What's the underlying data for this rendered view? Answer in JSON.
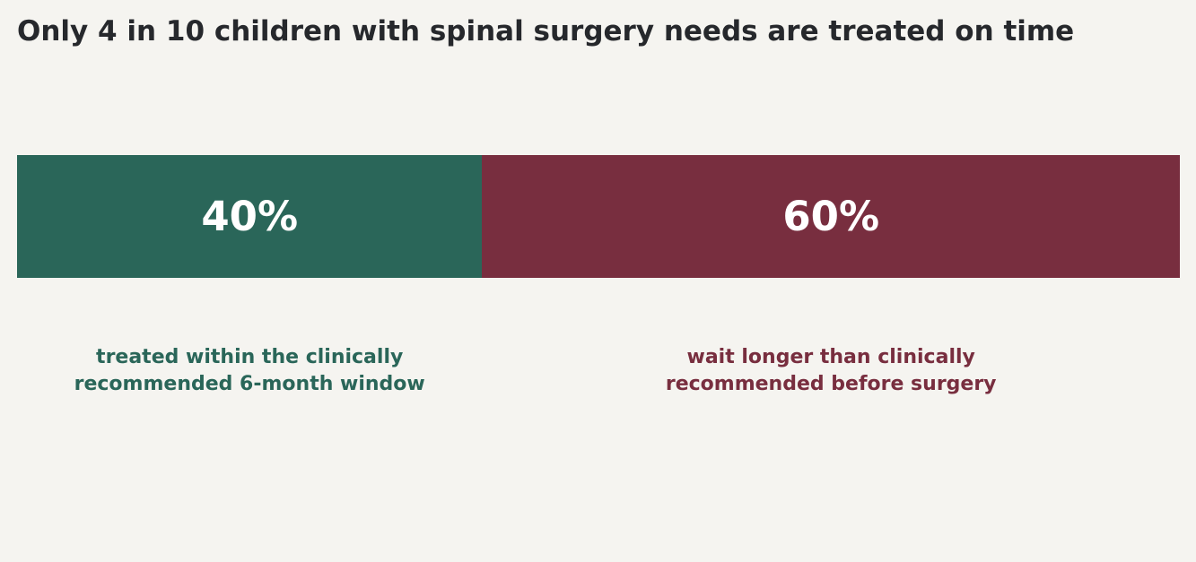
{
  "chart_data": {
    "type": "bar",
    "orientation": "horizontal",
    "stacked": true,
    "title": "Only 4 in 10 children with spinal surgery needs are treated on time",
    "series": [
      {
        "value": 40,
        "value_label": "40%",
        "description": "treated within the clinically\nrecommended 6-month window",
        "color": "#2a6659"
      },
      {
        "value": 60,
        "value_label": "60%",
        "description": "wait longer than clinically\nrecommended before surgery",
        "color": "#782e3f"
      }
    ],
    "xlim": [
      0,
      100
    ],
    "unit": "%",
    "grid": false,
    "legend": "none"
  }
}
